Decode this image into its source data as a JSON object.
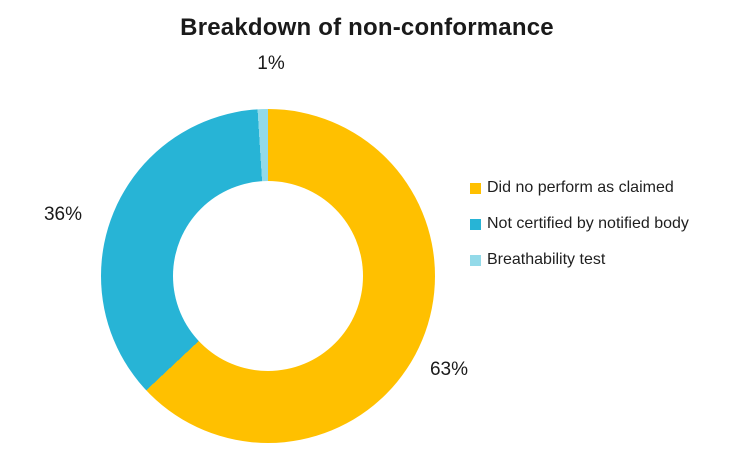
{
  "chart_data": {
    "type": "pie",
    "subtype": "donut",
    "title": "Breakdown of non-conformance",
    "start_angle_deg": 0,
    "direction": "clockwise",
    "hole_ratio": 0.57,
    "legend_position": "right",
    "data_labels": "outside",
    "background_color": "#ffffff",
    "title_color": "#1a1a1a",
    "series": [
      {
        "name": "Did no perform as claimed",
        "value": 63,
        "label": "63%",
        "color": "#FFC000"
      },
      {
        "name": "Not certified by notified body",
        "value": 36,
        "label": "36%",
        "color": "#27B4D6"
      },
      {
        "name": "Breathability test",
        "value": 1,
        "label": "1%",
        "color": "#93DAE9"
      }
    ]
  }
}
